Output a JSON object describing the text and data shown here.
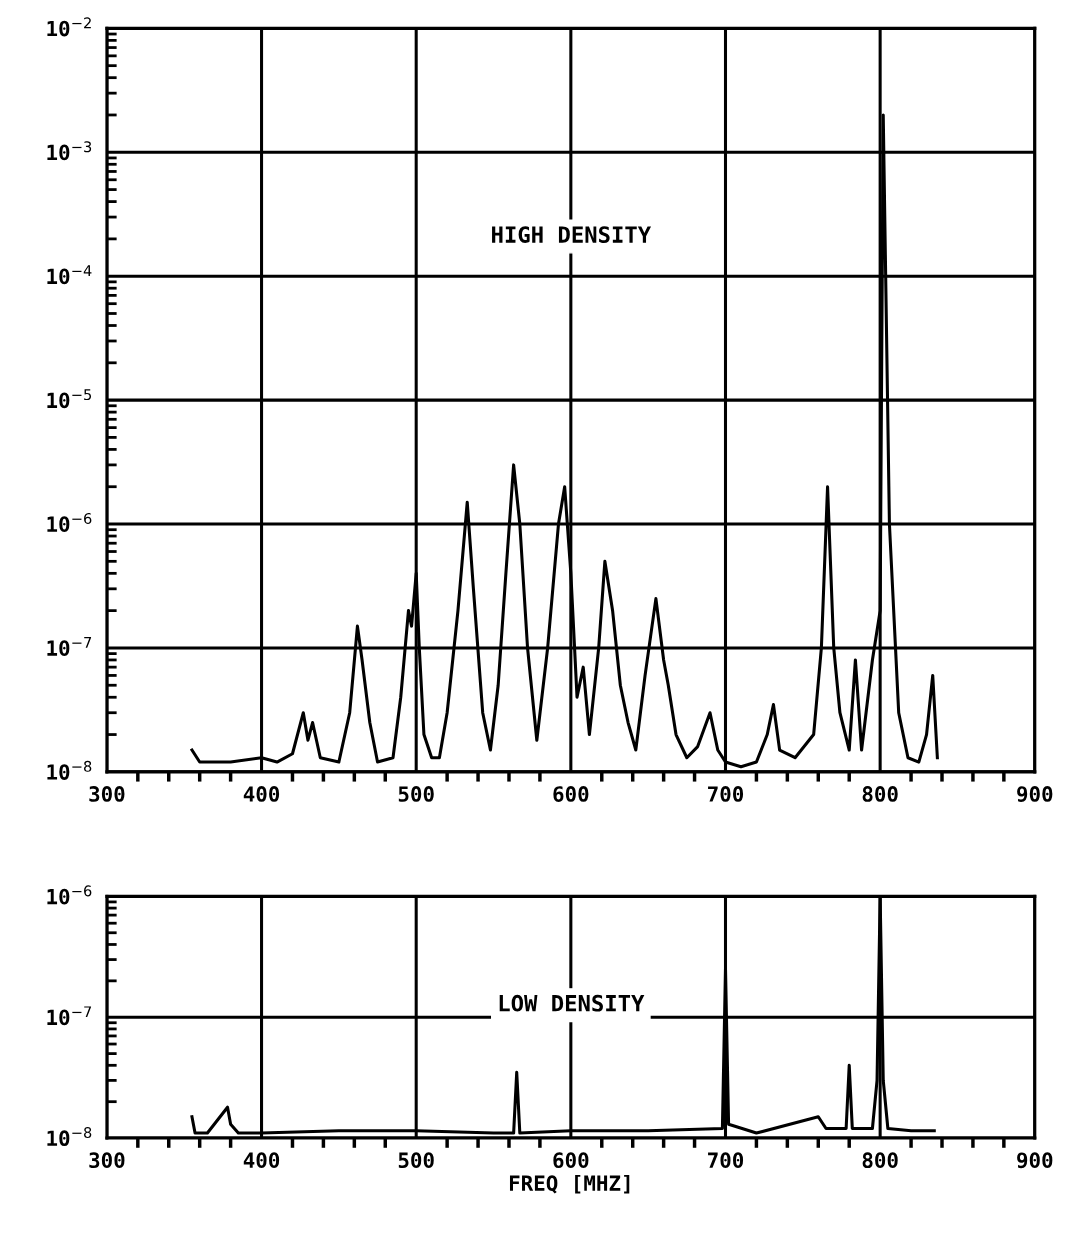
{
  "chart_data": [
    {
      "type": "line",
      "annotations": [
        "HIGH DENSITY"
      ],
      "xlim": [
        300,
        900
      ],
      "xticks": [
        300,
        400,
        500,
        600,
        700,
        800,
        900
      ],
      "ylim": [
        1e-08,
        0.01
      ],
      "log": "y",
      "grid": true,
      "marker": "none",
      "line_style": "solid",
      "yticks": [
        {
          "value": 1e-08,
          "label": "10$^{−8}$"
        },
        {
          "value": 1e-07,
          "label": "10$^{−7}$"
        },
        {
          "value": 1e-06,
          "label": "10$^{−6}$"
        },
        {
          "value": 1e-05,
          "label": "10$^{−5}$"
        },
        {
          "value": 0.0001,
          "label": "10$^{−4}$"
        },
        {
          "value": 0.001,
          "label": "10$^{−3}$"
        },
        {
          "value": 0.01,
          "label": "10$^{−2}$"
        }
      ],
      "series": [
        {
          "color": "#000000",
          "x": [
            355,
            360,
            380,
            400,
            410,
            420,
            427,
            430,
            433,
            438,
            450,
            457,
            462,
            465,
            470,
            475,
            485,
            490,
            495,
            497,
            500,
            502,
            505,
            510,
            515,
            520,
            527,
            533,
            537,
            543,
            548,
            553,
            558,
            563,
            567,
            572,
            578,
            585,
            592,
            596,
            600,
            604,
            608,
            612,
            618,
            622,
            627,
            632,
            637,
            642,
            648,
            655,
            660,
            663,
            668,
            675,
            682,
            690,
            695,
            700,
            710,
            720,
            727,
            731,
            735,
            745,
            757,
            762,
            766,
            770,
            774,
            780,
            784,
            788,
            795,
            800,
            802,
            806,
            812,
            818,
            825,
            830,
            834,
            837
          ],
          "values": [
            1.5e-08,
            1.2e-08,
            1.2e-08,
            1.3e-08,
            1.2e-08,
            1.4e-08,
            3e-08,
            1.8e-08,
            2.5e-08,
            1.3e-08,
            1.2e-08,
            3e-08,
            1.5e-07,
            8e-08,
            2.5e-08,
            1.2e-08,
            1.3e-08,
            4e-08,
            2e-07,
            1.5e-07,
            4e-07,
            1e-07,
            2e-08,
            1.3e-08,
            1.3e-08,
            3e-08,
            2e-07,
            1.5e-06,
            3e-07,
            3e-08,
            1.5e-08,
            5e-08,
            4e-07,
            3e-06,
            1e-06,
            1e-07,
            1.8e-08,
            1e-07,
            1e-06,
            2e-06,
            4e-07,
            4e-08,
            7e-08,
            2e-08,
            1e-07,
            5e-07,
            2e-07,
            5e-08,
            2.5e-08,
            1.5e-08,
            6e-08,
            2.5e-07,
            8e-08,
            5e-08,
            2e-08,
            1.3e-08,
            1.6e-08,
            3e-08,
            1.5e-08,
            1.2e-08,
            1.1e-08,
            1.2e-08,
            2e-08,
            3.5e-08,
            1.5e-08,
            1.3e-08,
            2e-08,
            1e-07,
            2e-06,
            1e-07,
            3e-08,
            1.5e-08,
            8e-08,
            1.5e-08,
            8e-08,
            2e-07,
            0.002,
            1e-06,
            3e-08,
            1.3e-08,
            1.2e-08,
            2e-08,
            6e-08,
            1.3e-08
          ]
        }
      ]
    },
    {
      "type": "line",
      "annotations": [
        "LOW DENSITY"
      ],
      "xlabel": "FREQ [MHZ]",
      "xlim": [
        300,
        900
      ],
      "xticks": [
        300,
        400,
        500,
        600,
        700,
        800,
        900
      ],
      "ylim": [
        1e-08,
        1e-06
      ],
      "log": "y",
      "grid": true,
      "marker": "none",
      "line_style": "solid",
      "yticks": [
        {
          "value": 1e-08,
          "label": "10$^{−8}$"
        },
        {
          "value": 1e-07,
          "label": "10$^{−7}$"
        },
        {
          "value": 1e-06,
          "label": "10$^{−6}$"
        }
      ],
      "series": [
        {
          "color": "#000000",
          "x": [
            355,
            357,
            365,
            378,
            380,
            385,
            400,
            450,
            500,
            550,
            563,
            565,
            567,
            600,
            650,
            698,
            700,
            702,
            720,
            760,
            765,
            778,
            780,
            782,
            795,
            798,
            800,
            802,
            805,
            820,
            835
          ],
          "values": [
            1.5e-08,
            1.1e-08,
            1.1e-08,
            1.8e-08,
            1.3e-08,
            1.1e-08,
            1.1e-08,
            1.15e-08,
            1.15e-08,
            1.1e-08,
            1.1e-08,
            3.5e-08,
            1.1e-08,
            1.15e-08,
            1.15e-08,
            1.2e-08,
            2.5e-07,
            1.3e-08,
            1.1e-08,
            1.5e-08,
            1.2e-08,
            1.2e-08,
            4e-08,
            1.2e-08,
            1.2e-08,
            3e-08,
            1e-06,
            3e-08,
            1.2e-08,
            1.15e-08,
            1.15e-08
          ]
        }
      ]
    }
  ]
}
